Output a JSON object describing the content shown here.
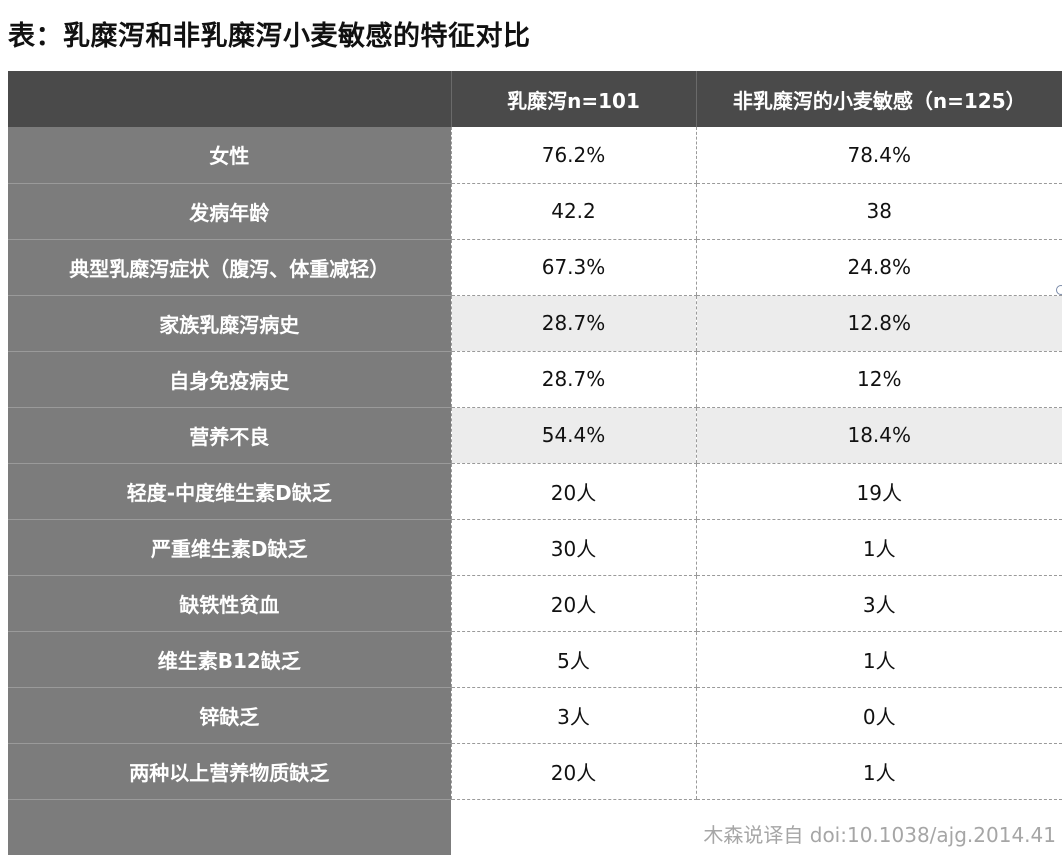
{
  "title": "表：乳糜泻和非乳糜泻小麦敏感的特征对比",
  "table": {
    "headers": [
      "",
      "乳糜泻n=101",
      "非乳糜泻的小麦敏感（n=125）"
    ],
    "rows": [
      {
        "label": "女性",
        "celiac": "76.2%",
        "ncws": "78.4%"
      },
      {
        "label": "发病年龄",
        "celiac": "42.2",
        "ncws": "38"
      },
      {
        "label": "典型乳糜泻症状（腹泻、体重减轻）",
        "celiac": "67.3%",
        "ncws": "24.8%"
      },
      {
        "label": "家族乳糜泻病史",
        "celiac": "28.7%",
        "ncws": "12.8%"
      },
      {
        "label": "自身免疫病史",
        "celiac": "28.7%",
        "ncws": "12%"
      },
      {
        "label": "营养不良",
        "celiac": "54.4%",
        "ncws": "18.4%"
      },
      {
        "label": "轻度-中度维生素D缺乏",
        "celiac": "20人",
        "ncws": "19人"
      },
      {
        "label": "严重维生素D缺乏",
        "celiac": "30人",
        "ncws": "1人"
      },
      {
        "label": "缺铁性贫血",
        "celiac": "20人",
        "ncws": "3人"
      },
      {
        "label": "维生素B12缺乏",
        "celiac": "5人",
        "ncws": "1人"
      },
      {
        "label": "锌缺乏",
        "celiac": "3人",
        "ncws": "0人"
      },
      {
        "label": "两种以上营养物质缺乏",
        "celiac": "20人",
        "ncws": "1人"
      }
    ]
  },
  "credit": "木森说译自 doi:10.1038/ajg.2014.41",
  "colors": {
    "header_bg": "#4a4a4a",
    "label_bg": "#7c7c7c",
    "stripe_bg": "#ececec",
    "credit_text": "#a6a6a6"
  }
}
